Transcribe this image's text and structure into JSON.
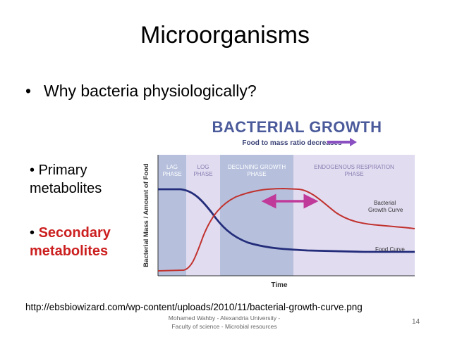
{
  "slide": {
    "title": "Microorganisms",
    "main_bullet": "Why bacteria physiologically?",
    "bullet_symbol": "•",
    "primary_line1": "Primary",
    "primary_line2": "metabolites",
    "secondary_line1": "Secondary",
    "secondary_line2": "metabolites",
    "source_url": "http://ebsbiowizard.com/wp-content/uploads/2010/11/bacterial-growth-curve.png",
    "footer_line1": "Mohamed Wahby - Alexandria University -",
    "footer_line2": "Faculty of science - Microbial resources",
    "page_number": "14"
  },
  "figure": {
    "title": "BACTERIAL GROWTH",
    "subtitle": "Food to mass ratio decreases",
    "y_label": "Bacterial Mass / Amount of Food",
    "x_label": "Time",
    "phases": [
      {
        "line1": "LAG",
        "line2": "PHASE"
      },
      {
        "line1": "LOG",
        "line2": "PHASE"
      },
      {
        "line1": "DECLINING GROWTH",
        "line2": "PHASE"
      },
      {
        "line1": "ENDOGENOUS RESPIRATION",
        "line2": "PHASE"
      }
    ],
    "curve_label_bacterial_1": "Bacterial",
    "curve_label_bacterial_2": "Growth Curve",
    "curve_label_food": "Food Curve",
    "colors": {
      "title": "#4a5a9a",
      "subtitle_arrow": "#8a4fc0",
      "phase_dark": "#b6c0dd",
      "phase_light": "#e2dcf1",
      "bacterial_curve": "#c0322e",
      "food_curve": "#232d7a",
      "double_arrow": "#c03a9a"
    }
  }
}
